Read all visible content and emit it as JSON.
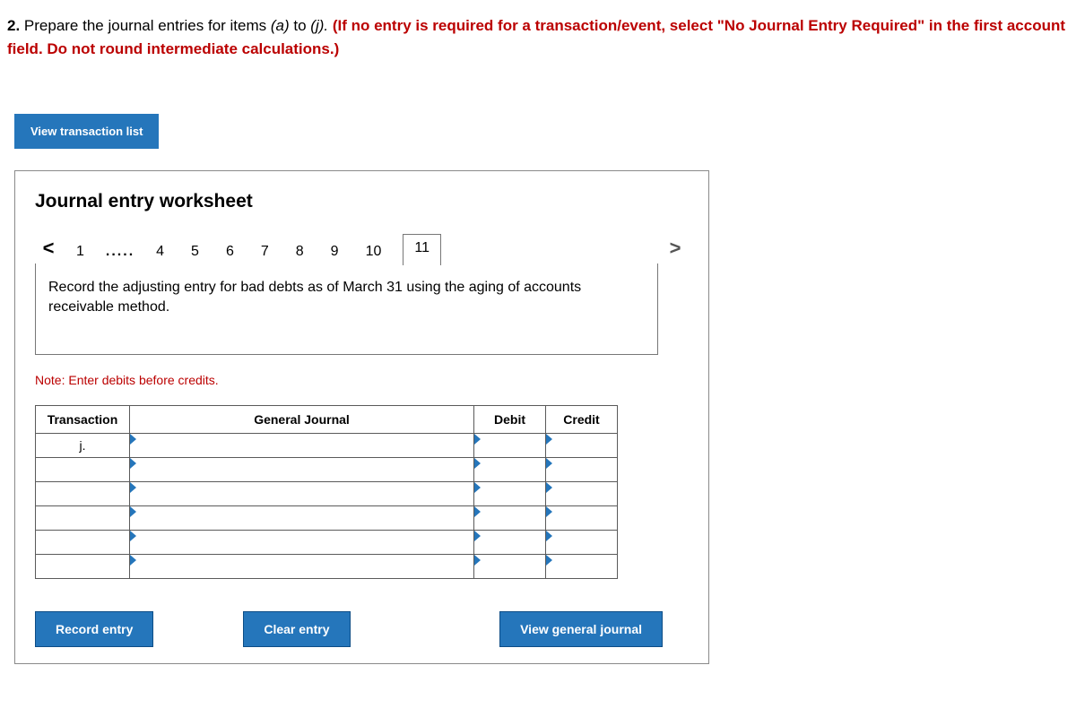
{
  "question": {
    "number": "2.",
    "text_before": " Prepare the journal entries for items ",
    "item_a": "(a)",
    "text_mid": " to ",
    "item_j": "(j).",
    "bold_red": " (If no entry is required for a transaction/event, select \"No Journal Entry Required\" in the first account field. Do not round intermediate calculations.)"
  },
  "buttons": {
    "view_tx": "View transaction list",
    "record": "Record entry",
    "clear": "Clear entry",
    "view_gj": "View general journal"
  },
  "worksheet": {
    "title": "Journal entry worksheet",
    "nav_prev": "<",
    "nav_next": ">",
    "tabs": [
      "1",
      ".....",
      "4",
      "5",
      "6",
      "7",
      "8",
      "9",
      "10",
      "11"
    ],
    "active_tab_index": 9,
    "prompt": "Record the adjusting entry for bad debts as of March 31 using the aging of accounts receivable method.",
    "note": "Note: Enter debits before credits.",
    "columns": {
      "transaction": "Transaction",
      "general_journal": "General Journal",
      "debit": "Debit",
      "credit": "Credit"
    },
    "rows": [
      {
        "transaction": "j.",
        "gj": "",
        "debit": "",
        "credit": ""
      },
      {
        "transaction": "",
        "gj": "",
        "debit": "",
        "credit": ""
      },
      {
        "transaction": "",
        "gj": "",
        "debit": "",
        "credit": ""
      },
      {
        "transaction": "",
        "gj": "",
        "debit": "",
        "credit": ""
      },
      {
        "transaction": "",
        "gj": "",
        "debit": "",
        "credit": ""
      },
      {
        "transaction": "",
        "gj": "",
        "debit": "",
        "credit": ""
      }
    ]
  },
  "colors": {
    "primary": "#2576bb",
    "red": "#bb0000",
    "border": "#5a5a5a"
  }
}
